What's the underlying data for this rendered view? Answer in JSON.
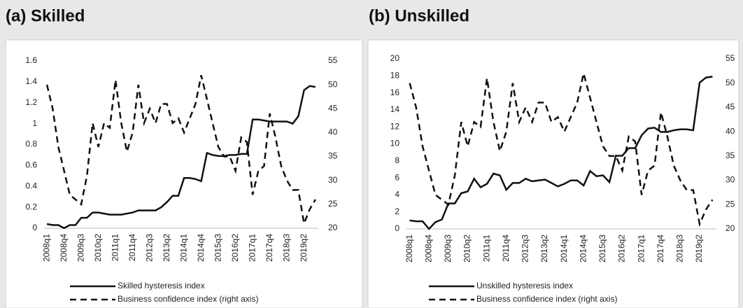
{
  "chart_data": [
    {
      "type": "line",
      "title": "(a) Skilled",
      "categories": [
        "2008q1",
        null,
        null,
        "2008q4",
        null,
        null,
        "2009q3",
        null,
        null,
        "2010q2",
        null,
        null,
        "2011q1",
        null,
        null,
        "2011q4",
        null,
        null,
        "2012q3",
        null,
        null,
        "2013q2",
        null,
        null,
        "2014q1",
        null,
        null,
        "2014q4",
        null,
        null,
        "2015q3",
        null,
        null,
        "2016q2",
        null,
        null,
        "2017q1",
        null,
        null,
        "2017q4",
        null,
        null,
        "2018q3",
        null,
        null,
        "2019q2",
        null,
        null
      ],
      "series": [
        {
          "name": "Skilled hysteresis index",
          "color": "#111111",
          "line_style": "solid",
          "values": [
            0.04,
            0.03,
            0.03,
            0.0,
            0.03,
            0.03,
            0.1,
            0.1,
            0.15,
            0.15,
            0.14,
            0.13,
            0.13,
            0.13,
            0.14,
            0.15,
            0.17,
            0.17,
            0.17,
            0.17,
            0.2,
            0.25,
            0.31,
            0.31,
            0.48,
            0.48,
            0.47,
            0.45,
            0.72,
            0.7,
            0.69,
            0.69,
            0.7,
            0.7,
            0.71,
            0.71,
            1.04,
            1.04,
            1.03,
            1.02,
            1.02,
            1.02,
            1.02,
            1.0,
            1.07,
            1.32,
            1.36,
            1.35
          ]
        },
        {
          "name": "Business confidence index (right axis)",
          "color": "#111111",
          "line_style": "dashed",
          "axis": "y2",
          "values": [
            50,
            45,
            37,
            32,
            27,
            26,
            25,
            31,
            42,
            37,
            42,
            41,
            51,
            42,
            36,
            40,
            50,
            42,
            45,
            42,
            46,
            46,
            42,
            43,
            40,
            43,
            46,
            52,
            47,
            42,
            37,
            35,
            35,
            32,
            39,
            38,
            27,
            32,
            33,
            44,
            39,
            33,
            30,
            28,
            28,
            21,
            24,
            26
          ]
        }
      ],
      "ylim": [
        0,
        1.6
      ],
      "yticks": [
        0,
        0.2,
        0.4,
        0.6,
        0.8,
        1,
        1.2,
        1.4,
        1.6
      ],
      "y2lim": [
        20,
        55
      ],
      "y2ticks": [
        20,
        25,
        30,
        35,
        40,
        45,
        50,
        55
      ],
      "grid": false
    },
    {
      "type": "line",
      "title": "(b) Unskilled",
      "categories": [
        "2008q1",
        null,
        null,
        "2008q4",
        null,
        null,
        "2009q3",
        null,
        null,
        "2010q2",
        null,
        null,
        "2011q1",
        null,
        null,
        "2011q4",
        null,
        null,
        "2012q3",
        null,
        null,
        "2013q2",
        null,
        null,
        "2014q1",
        null,
        null,
        "2014q4",
        null,
        null,
        "2015q3",
        null,
        null,
        "2016q2",
        null,
        null,
        "2017q1",
        null,
        null,
        "2017q4",
        null,
        null,
        "2018q3",
        null,
        null,
        "2019q2",
        null,
        null
      ],
      "series": [
        {
          "name": "Unskilled hysteresis index",
          "color": "#111111",
          "line_style": "solid",
          "values": [
            1.0,
            0.9,
            0.9,
            0,
            0.8,
            1.1,
            3.0,
            3.0,
            4.2,
            4.4,
            5.9,
            4.9,
            5.3,
            6.5,
            6.3,
            4.6,
            5.4,
            5.4,
            5.9,
            5.6,
            5.7,
            5.8,
            5.4,
            5.0,
            5.3,
            5.7,
            5.7,
            5.1,
            6.8,
            6.2,
            6.3,
            5.5,
            8.6,
            8.6,
            9.5,
            9.5,
            11.0,
            11.8,
            11.9,
            11.4,
            11.4,
            11.6,
            11.7,
            11.7,
            11.6,
            17.2,
            17.8,
            17.9
          ]
        },
        {
          "name": "Business confidence index (right axis)",
          "color": "#111111",
          "line_style": "dashed",
          "axis": "y2",
          "values": [
            50,
            45,
            37,
            32,
            27,
            26,
            25,
            31,
            42,
            37,
            42,
            41,
            51,
            42,
            36,
            40,
            50,
            42,
            45,
            42,
            46,
            46,
            42,
            43,
            40,
            43,
            46,
            52,
            47,
            42,
            37,
            35,
            35,
            32,
            39,
            38,
            27,
            32,
            33,
            44,
            39,
            33,
            30,
            28,
            28,
            21,
            24,
            26
          ]
        }
      ],
      "ylim": [
        0,
        20
      ],
      "yticks": [
        0,
        2,
        4,
        6,
        8,
        10,
        12,
        14,
        16,
        18,
        20
      ],
      "y2lim": [
        20,
        55
      ],
      "y2ticks": [
        20,
        25,
        30,
        35,
        40,
        45,
        50,
        55
      ],
      "grid": false
    }
  ]
}
